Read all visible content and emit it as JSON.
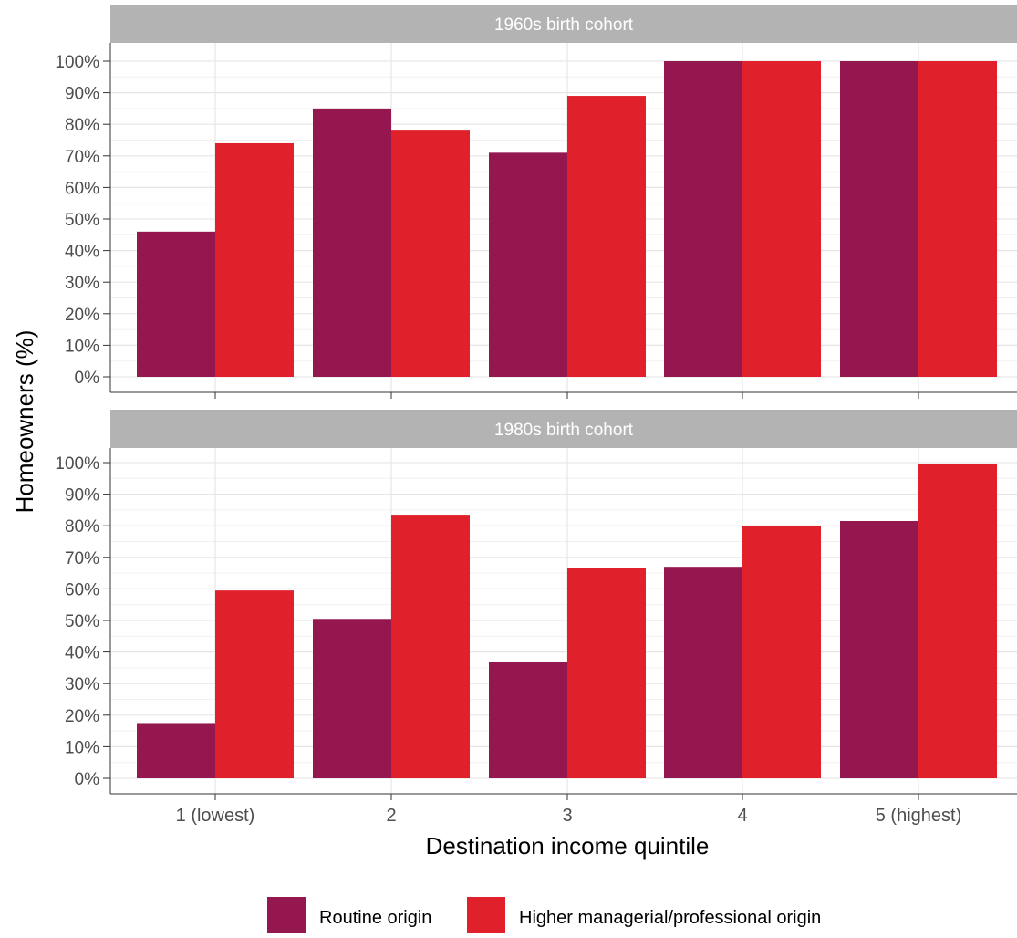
{
  "chart_data": {
    "type": "bar",
    "ylabel": "Homeowners (%)",
    "xlabel": "Destination income quintile",
    "categories": [
      "1 (lowest)",
      "2",
      "3",
      "4",
      "5 (highest)"
    ],
    "y_ticks": [
      "0%",
      "10%",
      "20%",
      "30%",
      "40%",
      "50%",
      "60%",
      "70%",
      "80%",
      "90%",
      "100%"
    ],
    "ylim": [
      0,
      100
    ],
    "grid": true,
    "legend_position": "bottom",
    "series_names": [
      "Routine origin",
      "Higher managerial/professional origin"
    ],
    "colors": {
      "routine": "#95174F",
      "higher": "#E0202A",
      "strip": "#B3B3B3",
      "grid": "#E6E6E6"
    },
    "panels": [
      {
        "title": "1960s birth cohort",
        "series": [
          {
            "name": "Routine origin",
            "values": [
              46,
              85,
              71,
              100,
              100
            ]
          },
          {
            "name": "Higher managerial/professional origin",
            "values": [
              74,
              78,
              89,
              100,
              100
            ]
          }
        ]
      },
      {
        "title": "1980s birth cohort",
        "series": [
          {
            "name": "Routine origin",
            "values": [
              17.5,
              50.5,
              37,
              67,
              81.5
            ]
          },
          {
            "name": "Higher managerial/professional origin",
            "values": [
              59.5,
              83.5,
              66.5,
              80,
              99.5
            ]
          }
        ]
      }
    ]
  }
}
